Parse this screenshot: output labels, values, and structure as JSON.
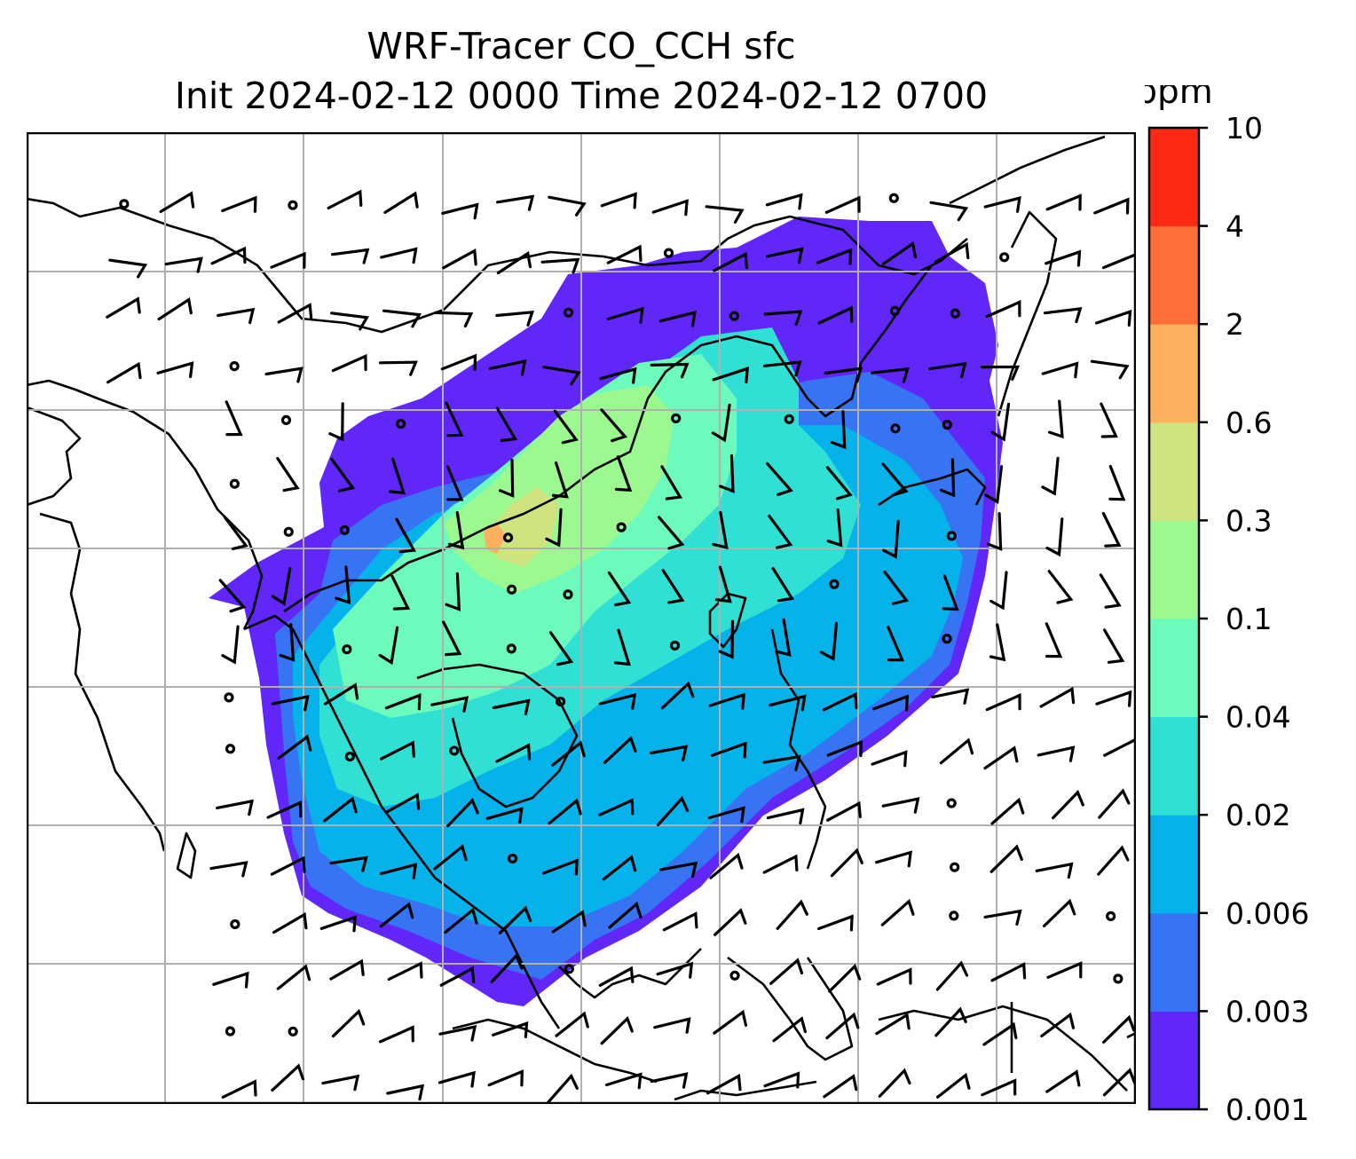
{
  "title": {
    "line1": "WRF-Tracer CO_CCH sfc",
    "line2": "Init 2024-02-12 0000 Time 2024-02-12 0700"
  },
  "colorbar": {
    "unit": "ppm",
    "levels": [
      "0.001",
      "0.003",
      "0.006",
      "0.02",
      "0.04",
      "0.1",
      "0.3",
      "0.6",
      "2",
      "4",
      "10"
    ],
    "colors": [
      "#6127f8",
      "#3674f4",
      "#06b2ea",
      "#31e0d4",
      "#6dfbbd",
      "#9cf98f",
      "#d0e381",
      "#fdb05d",
      "#fe6f38",
      "#fe2a15"
    ]
  },
  "map": {
    "gridlines": "on",
    "wind_barbs": "on",
    "coastlines": "on"
  }
}
